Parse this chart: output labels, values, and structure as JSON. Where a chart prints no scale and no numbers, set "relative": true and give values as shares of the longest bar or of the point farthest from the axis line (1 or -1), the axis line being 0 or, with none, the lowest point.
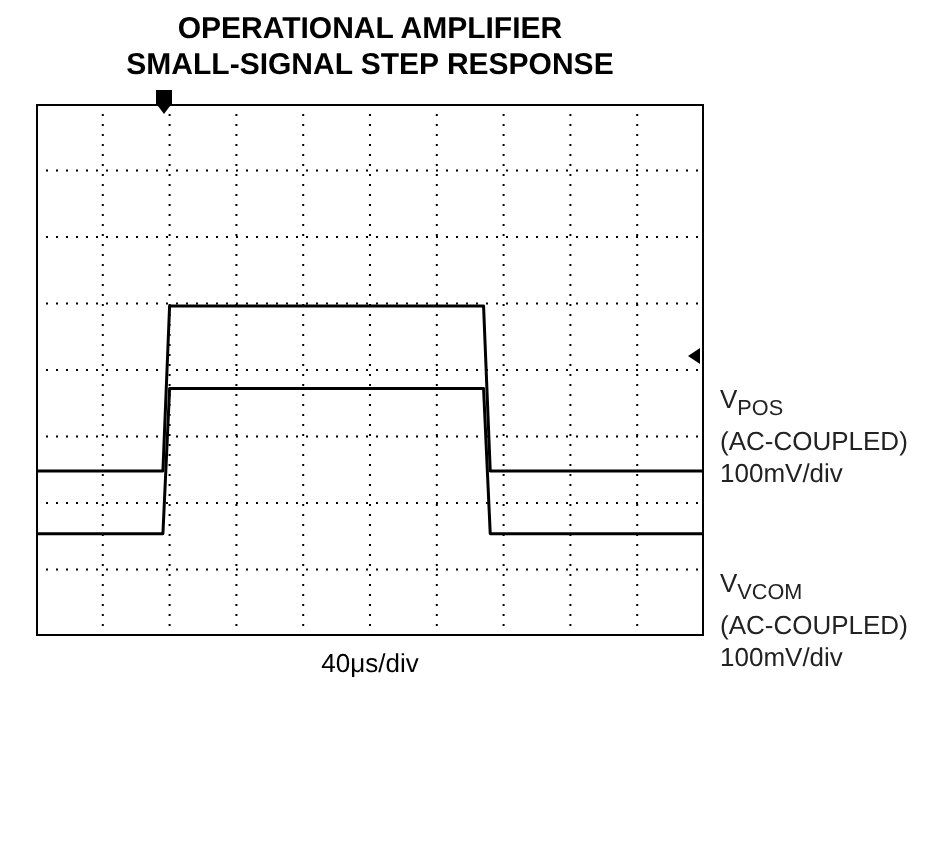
{
  "chart_data": {
    "type": "line",
    "title": "OPERATIONAL AMPLIFIER\nSMALL-SIGNAL STEP RESPONSE",
    "xlabel": "40μs/div",
    "relative": true,
    "grid": true,
    "legend": "right",
    "marker": "none",
    "line_style": "solid",
    "categories": [
      null,
      null,
      null,
      null,
      null,
      null,
      null,
      null,
      null,
      null,
      null,
      null,
      null,
      null,
      null,
      null,
      null,
      null,
      null,
      null,
      null,
      null,
      null,
      null,
      null,
      null,
      null,
      null,
      null,
      null,
      null,
      null,
      null,
      null,
      null,
      null,
      null,
      null,
      null,
      null,
      null,
      null,
      null,
      null,
      null,
      null,
      null,
      null,
      null,
      null,
      null,
      null,
      null,
      null,
      null,
      null,
      null,
      null,
      null,
      null,
      null,
      null,
      null,
      null,
      null,
      null,
      null,
      null,
      null,
      null,
      null,
      null,
      null,
      null,
      null,
      null,
      null,
      null,
      null,
      null,
      null,
      null,
      null,
      null,
      null,
      null,
      null,
      null,
      null,
      null,
      null,
      null,
      null,
      null,
      null,
      null,
      null,
      null,
      null,
      null,
      null
    ],
    "series": [
      {
        "name": "V$_{POS}$",
        "color": "#000000",
        "values": [
          0.5,
          0.5,
          0.5,
          0.5,
          0.5,
          0.5,
          0.5,
          0.5,
          0.5,
          0.5,
          0.5,
          0.5,
          0.5,
          0.5,
          0.5,
          0.5,
          0.5,
          0.5,
          0.5,
          0.5,
          1,
          1,
          1,
          1,
          1,
          1,
          1,
          1,
          1,
          1,
          1,
          1,
          1,
          1,
          1,
          1,
          1,
          1,
          1,
          1,
          1,
          1,
          1,
          1,
          1,
          1,
          1,
          1,
          1,
          1,
          1,
          1,
          1,
          1,
          1,
          1,
          1,
          1,
          1,
          1,
          1,
          1,
          1,
          1,
          1,
          1,
          1,
          1,
          0.5,
          0.5,
          0.5,
          0.5,
          0.5,
          0.5,
          0.5,
          0.5,
          0.5,
          0.5,
          0.5,
          0.5,
          0.5,
          0.5,
          0.5,
          0.5,
          0.5,
          0.5,
          0.5,
          0.5,
          0.5,
          0.5,
          0.5,
          0.5,
          0.5,
          0.5,
          0.5,
          0.5,
          0.5,
          0.5,
          0.5,
          0.5,
          0.5
        ]
      },
      {
        "name": "V$_{VCOM}$",
        "color": "#000000",
        "values": [
          0.31,
          0.31,
          0.31,
          0.31,
          0.31,
          0.31,
          0.31,
          0.31,
          0.31,
          0.31,
          0.31,
          0.31,
          0.31,
          0.31,
          0.31,
          0.31,
          0.31,
          0.31,
          0.31,
          0.31,
          0.75,
          0.75,
          0.75,
          0.75,
          0.75,
          0.75,
          0.75,
          0.75,
          0.75,
          0.75,
          0.75,
          0.75,
          0.75,
          0.75,
          0.75,
          0.75,
          0.75,
          0.75,
          0.75,
          0.75,
          0.75,
          0.75,
          0.75,
          0.75,
          0.75,
          0.75,
          0.75,
          0.75,
          0.75,
          0.75,
          0.75,
          0.75,
          0.75,
          0.75,
          0.75,
          0.75,
          0.75,
          0.75,
          0.75,
          0.75,
          0.75,
          0.75,
          0.75,
          0.75,
          0.75,
          0.75,
          0.75,
          0.75,
          0.31,
          0.31,
          0.31,
          0.31,
          0.31,
          0.31,
          0.31,
          0.31,
          0.31,
          0.31,
          0.31,
          0.31,
          0.31,
          0.31,
          0.31,
          0.31,
          0.31,
          0.31,
          0.31,
          0.31,
          0.31,
          0.31,
          0.31,
          0.31,
          0.31,
          0.31,
          0.31,
          0.31,
          0.31,
          0.31,
          0.31,
          0.31,
          0.31
        ]
      }
    ],
    "annotations": [
      "(AC-COUPLED)",
      "100mV/div",
      "(AC-COUPLED)",
      "100mV/div"
    ]
  }
}
